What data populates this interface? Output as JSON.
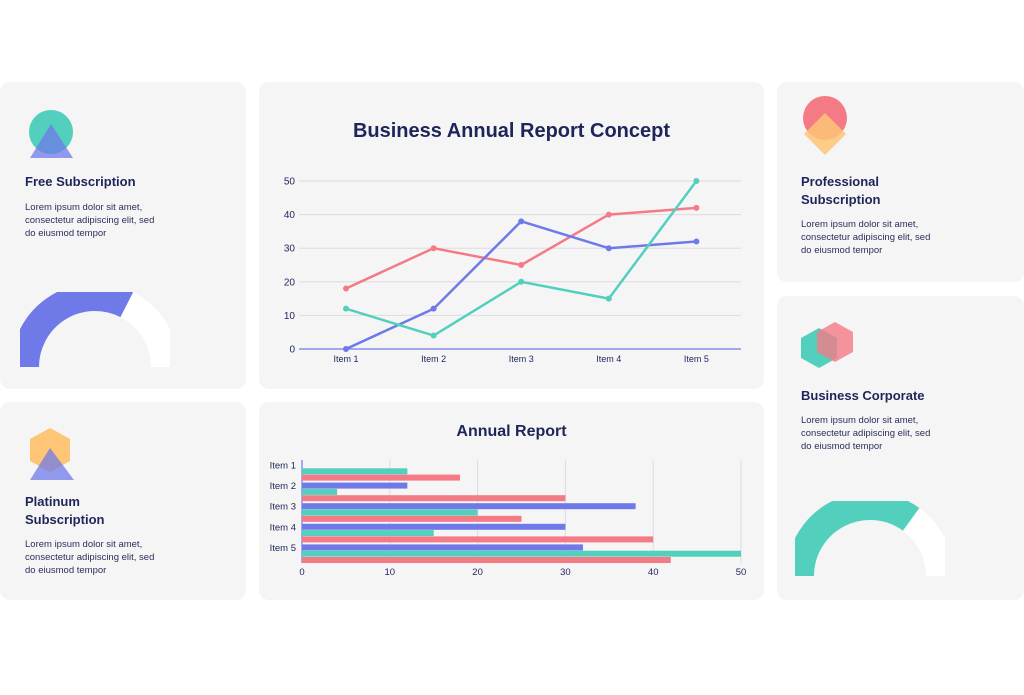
{
  "colors": {
    "blue": "#6f7ae8",
    "pink": "#f47b86",
    "teal": "#53cfbd",
    "orange": "#fdc575",
    "text": "#1e2559",
    "card": "#f5f5f6"
  },
  "cards": {
    "free": {
      "title": "Free Subscription",
      "desc": "Lorem ipsum dolor sit amet,\nconsectetur adipiscing elit, sed\ndo eiusmod tempor",
      "icon": "circle-triangle-icon",
      "gauge_fraction": 0.65
    },
    "platinum": {
      "title": "Platinum\nSubscription",
      "desc": "Lorem ipsum dolor sit amet,\nconsectetur adipiscing elit, sed\ndo eiusmod tempor",
      "icon": "hexagon-triangle-icon"
    },
    "professional": {
      "title": "Professional\nSubscription",
      "desc": "Lorem ipsum dolor sit amet,\nconsectetur adipiscing elit, sed\ndo eiusmod tempor",
      "icon": "circle-diamond-icon"
    },
    "corporate": {
      "title": "Business Corporate",
      "desc": "Lorem ipsum dolor sit amet,\nconsectetur adipiscing elit, sed\ndo eiusmod tempor",
      "icon": "overlapping-hexagons-icon",
      "gauge_fraction": 0.7
    }
  },
  "chart_data": [
    {
      "type": "line",
      "title": "Business Annual Report Concept",
      "categories": [
        "Item 1",
        "Item 2",
        "Item 3",
        "Item 4",
        "Item 5"
      ],
      "ylim": [
        0,
        50
      ],
      "yticks": [
        0,
        10,
        20,
        30,
        40,
        50
      ],
      "grid": true,
      "series": [
        {
          "values": [
            18,
            30,
            25,
            40,
            42
          ],
          "color": "#f47b86"
        },
        {
          "values": [
            0,
            12,
            38,
            30,
            32
          ],
          "color": "#6f7ae8"
        },
        {
          "values": [
            12,
            4,
            20,
            15,
            50
          ],
          "color": "#53cfbd"
        }
      ]
    },
    {
      "type": "bar",
      "orientation": "horizontal",
      "title": "Annual Report",
      "categories": [
        "Item 1",
        "Item 2",
        "Item 3",
        "Item 4",
        "Item 5"
      ],
      "xlim": [
        0,
        50
      ],
      "xticks": [
        0,
        10,
        20,
        30,
        40,
        50
      ],
      "grid": true,
      "series": [
        {
          "values": [
            0,
            12,
            38,
            30,
            32
          ],
          "color": "#6f7ae8"
        },
        {
          "values": [
            12,
            4,
            20,
            15,
            50
          ],
          "color": "#53cfbd"
        },
        {
          "values": [
            18,
            30,
            25,
            40,
            42
          ],
          "color": "#f47b86"
        }
      ]
    }
  ]
}
